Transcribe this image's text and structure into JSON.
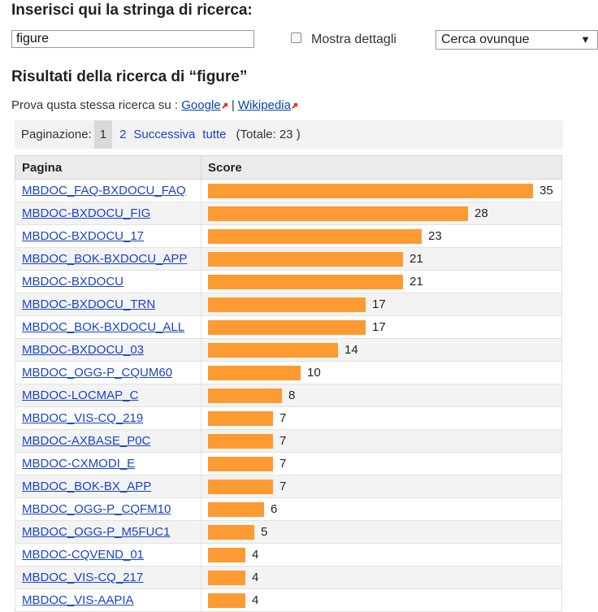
{
  "search": {
    "heading": "Inserisci qui la stringa di ricerca:",
    "value": "figure",
    "details_label": "Mostra dettagli",
    "scope_selected": "Cerca ovunque",
    "arrow": "▼"
  },
  "results": {
    "heading": "Risultati della ricerca di “figure”",
    "try_prefix": "Prova qusta stessa ricerca su :",
    "google": "Google",
    "separator": "|",
    "wikipedia": "Wikipedia"
  },
  "pagination": {
    "label": "Paginazione:",
    "current": "1",
    "page2": "2",
    "next": "Successiva",
    "all": "tutte",
    "total": "(Totale: 23 )"
  },
  "table": {
    "col_page": "Pagina",
    "col_score": "Score",
    "max_score": 35,
    "bar_color": "#fd9a32",
    "rows": [
      {
        "page": "MBDOC_FAQ-BXDOCU_FAQ",
        "score": 35
      },
      {
        "page": "MBDOC-BXDOCU_FIG",
        "score": 28
      },
      {
        "page": "MBDOC-BXDOCU_17",
        "score": 23
      },
      {
        "page": "MBDOC_BOK-BXDOCU_APP",
        "score": 21
      },
      {
        "page": "MBDOC-BXDOCU",
        "score": 21
      },
      {
        "page": "MBDOC-BXDOCU_TRN",
        "score": 17
      },
      {
        "page": "MBDOC_BOK-BXDOCU_ALL",
        "score": 17
      },
      {
        "page": "MBDOC-BXDOCU_03",
        "score": 14
      },
      {
        "page": "MBDOC_OGG-P_CQUM60",
        "score": 10
      },
      {
        "page": "MBDOC-LOCMAP_C",
        "score": 8
      },
      {
        "page": "MBDOC_VIS-CQ_219",
        "score": 7
      },
      {
        "page": "MBDOC-AXBASE_P0C",
        "score": 7
      },
      {
        "page": "MBDOC-CXMODI_E",
        "score": 7
      },
      {
        "page": "MBDOC_BOK-BX_APP",
        "score": 7
      },
      {
        "page": "MBDOC_OGG-P_CQFM10",
        "score": 6
      },
      {
        "page": "MBDOC_OGG-P_M5FUC1",
        "score": 5
      },
      {
        "page": "MBDOC-CQVEND_01",
        "score": 4
      },
      {
        "page": "MBDOC_VIS-CQ_217",
        "score": 4
      },
      {
        "page": "MBDOC_VIS-AAPIA",
        "score": 4
      }
    ]
  }
}
